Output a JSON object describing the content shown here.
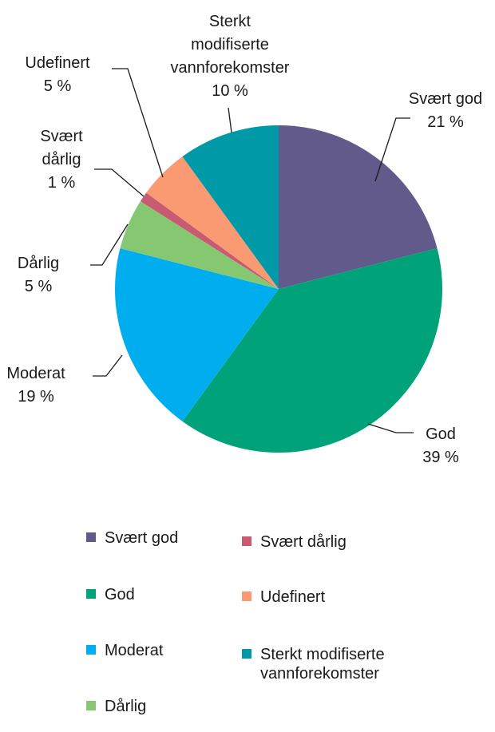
{
  "chart_data": {
    "type": "pie",
    "start_angle_deg": 0,
    "direction": "clockwise",
    "slices": [
      {
        "key": "svaert_god",
        "name": "Svært god",
        "value": 21,
        "value_label": "21 %",
        "color": "#635a8c"
      },
      {
        "key": "god",
        "name": "God",
        "value": 39,
        "value_label": "39 %",
        "color": "#00a27a"
      },
      {
        "key": "moderat",
        "name": "Moderat",
        "value": 19,
        "value_label": "19 %",
        "color": "#00aeef"
      },
      {
        "key": "darlig",
        "name": "Dårlig",
        "value": 5,
        "value_label": "5 %",
        "color": "#86c872"
      },
      {
        "key": "svaert_darlig",
        "name": "Svært dårlig",
        "value": 1,
        "value_label": "1 %",
        "color": "#c85a71"
      },
      {
        "key": "udefinert",
        "name": "Udefinert",
        "value": 5,
        "value_label": "5 %",
        "color": "#f99a73"
      },
      {
        "key": "sterkt_modifiserte",
        "name": "Sterkt modifiserte vannforekomster",
        "value": 10,
        "value_label": "10 %",
        "color": "#0099a8"
      }
    ],
    "data_labels": {
      "svaert_god": [
        "Svært god",
        "21 %"
      ],
      "god": [
        "God",
        "39 %"
      ],
      "moderat": [
        "Moderat",
        "19 %"
      ],
      "darlig": [
        "Dårlig",
        "5 %"
      ],
      "svaert_darlig": [
        "Svært",
        "dårlig",
        "1 %"
      ],
      "udefinert": [
        "Udefinert",
        "5 %"
      ],
      "sterkt_modifiserte": [
        "Sterkt",
        "modifiserte",
        "vannforekomster",
        "10 %"
      ]
    },
    "legend": {
      "position": "bottom",
      "columns": 2,
      "items": [
        {
          "key": "svaert_god",
          "label": "Svært god"
        },
        {
          "key": "svaert_darlig",
          "label": "Svært dårlig"
        },
        {
          "key": "god",
          "label": "God"
        },
        {
          "key": "udefinert",
          "label": "Udefinert"
        },
        {
          "key": "moderat",
          "label": "Moderat"
        },
        {
          "key": "sterkt_modifiserte",
          "label": "Sterkt modifiserte vannforekomster"
        },
        {
          "key": "darlig",
          "label": "Dårlig"
        }
      ]
    }
  }
}
